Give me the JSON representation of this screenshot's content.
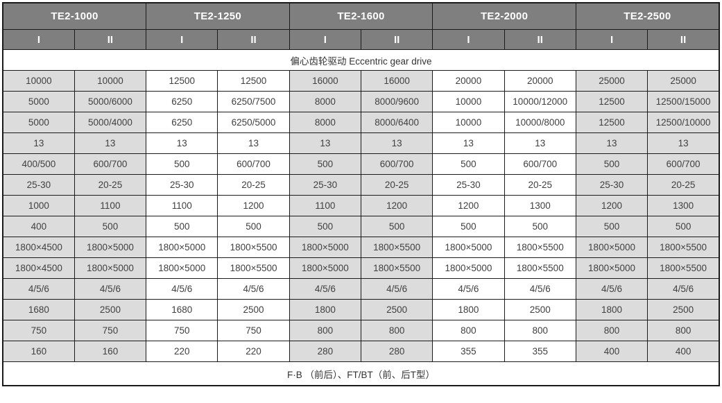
{
  "chart_data": {
    "type": "table",
    "models": [
      "TE2-1000",
      "TE2-1250",
      "TE2-1600",
      "TE2-2000",
      "TE2-2500"
    ],
    "subheaders": [
      "I",
      "II",
      "I",
      "II",
      "I",
      "II",
      "I",
      "II",
      "I",
      "II"
    ],
    "drive_row": "偏心齿轮驱动  Eccentric gear drive",
    "rows": [
      [
        "10000",
        "10000",
        "12500",
        "12500",
        "16000",
        "16000",
        "20000",
        "20000",
        "25000",
        "25000"
      ],
      [
        "5000",
        "5000/6000",
        "6250",
        "6250/7500",
        "8000",
        "8000/9600",
        "10000",
        "10000/12000",
        "12500",
        "12500/15000"
      ],
      [
        "5000",
        "5000/4000",
        "6250",
        "6250/5000",
        "8000",
        "8000/6400",
        "10000",
        "10000/8000",
        "12500",
        "12500/10000"
      ],
      [
        "13",
        "13",
        "13",
        "13",
        "13",
        "13",
        "13",
        "13",
        "13",
        "13"
      ],
      [
        "400/500",
        "600/700",
        "500",
        "600/700",
        "500",
        "600/700",
        "500",
        "600/700",
        "500",
        "600/700"
      ],
      [
        "25-30",
        "20-25",
        "25-30",
        "20-25",
        "25-30",
        "20-25",
        "25-30",
        "20-25",
        "25-30",
        "20-25"
      ],
      [
        "1000",
        "1100",
        "1100",
        "1200",
        "1100",
        "1200",
        "1200",
        "1300",
        "1200",
        "1300"
      ],
      [
        "400",
        "500",
        "500",
        "500",
        "500",
        "500",
        "500",
        "500",
        "500",
        "500"
      ],
      [
        "1800×4500",
        "1800×5000",
        "1800×5000",
        "1800×5500",
        "1800×5000",
        "1800×5500",
        "1800×5000",
        "1800×5500",
        "1800×5000",
        "1800×5500"
      ],
      [
        "1800×4500",
        "1800×5000",
        "1800×5000",
        "1800×5500",
        "1800×5000",
        "1800×5500",
        "1800×5000",
        "1800×5500",
        "1800×5000",
        "1800×5500"
      ],
      [
        "4/5/6",
        "4/5/6",
        "4/5/6",
        "4/5/6",
        "4/5/6",
        "4/5/6",
        "4/5/6",
        "4/5/6",
        "4/5/6",
        "4/5/6"
      ],
      [
        "1680",
        "2500",
        "1680",
        "2500",
        "1800",
        "2500",
        "1800",
        "2500",
        "1800",
        "2500"
      ],
      [
        "750",
        "750",
        "750",
        "750",
        "800",
        "800",
        "800",
        "800",
        "800",
        "800"
      ],
      [
        "160",
        "160",
        "220",
        "220",
        "280",
        "280",
        "355",
        "355",
        "400",
        "400"
      ]
    ],
    "footer": "F·B （前后）、FT/BT（前、后T型）",
    "shaded_column_indices": [
      0,
      1,
      4,
      5,
      8,
      9
    ]
  },
  "colors": {
    "header_bg": "#7f7f7f",
    "shade_bg": "#dcdcdc",
    "border": "#1a1a1a",
    "header_text": "#ffffff",
    "cell_text": "#404040"
  }
}
